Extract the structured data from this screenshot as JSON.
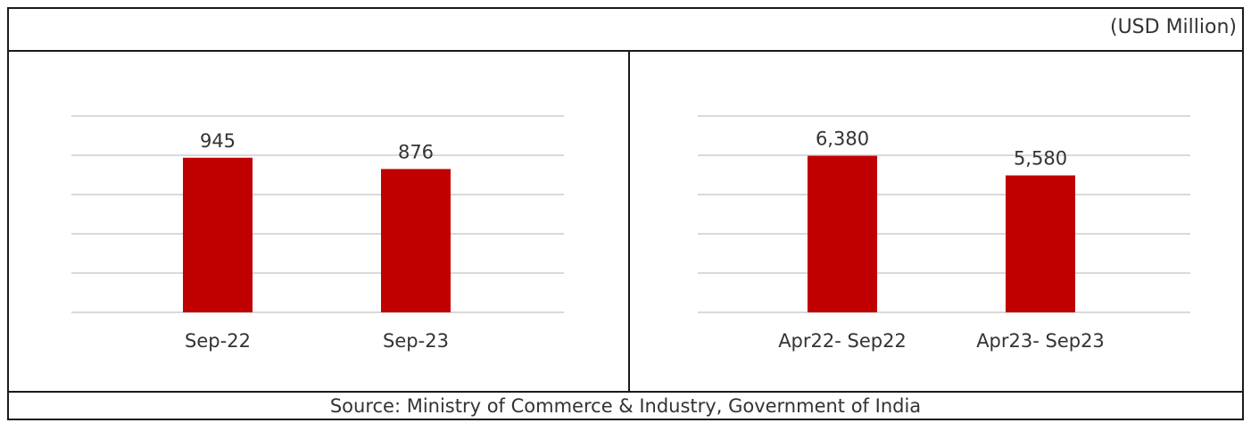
{
  "unit_label": "(USD Million)",
  "source": "Source: Ministry of Commerce & Industry, Government of India",
  "colors": {
    "bar": "#c00000",
    "grid": "#d9d9d9",
    "border": "#1a1a1a"
  },
  "chart_data": [
    {
      "type": "bar",
      "categories": [
        "Sep-22",
        "Sep-23"
      ],
      "values": [
        945,
        876
      ],
      "data_labels": [
        "945",
        "876"
      ],
      "ylim": [
        0,
        1200
      ],
      "grid": true,
      "legend": "none"
    },
    {
      "type": "bar",
      "categories": [
        "Apr22- Sep22",
        "Apr23- Sep23"
      ],
      "values": [
        6380,
        5580
      ],
      "data_labels": [
        "6,380",
        "5,580"
      ],
      "ylim": [
        0,
        8000
      ],
      "grid": true,
      "legend": "none"
    }
  ]
}
